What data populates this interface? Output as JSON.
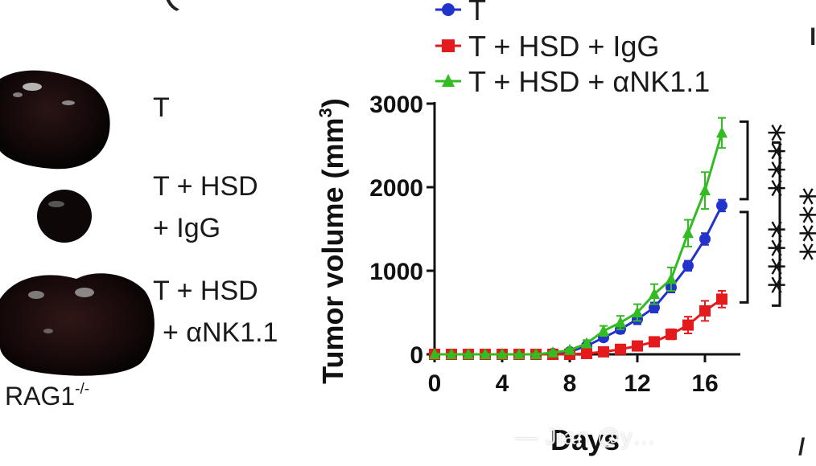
{
  "panel_photos": {
    "groups": [
      {
        "line1": "T",
        "line2": ""
      },
      {
        "line1": "T + HSD",
        "line2": "+ IgG"
      },
      {
        "line1": "T + HSD",
        "line2": "+ αNK1.1"
      }
    ],
    "strain": "RAG1",
    "strain_sup": "-/-"
  },
  "chart_data": {
    "type": "line",
    "xlabel": "Days",
    "ylabel": "Tumor volume (mm",
    "ylabel_sup": "3",
    "ylabel_close": ")",
    "xlim": [
      0,
      18
    ],
    "ylim": [
      0,
      3000
    ],
    "xticks": [
      0,
      4,
      8,
      12,
      16
    ],
    "yticks": [
      0,
      1000,
      2000,
      3000
    ],
    "legend_position": "top",
    "x": [
      0,
      1,
      2,
      3,
      4,
      5,
      6,
      7,
      8,
      9,
      10,
      11,
      12,
      13,
      14,
      15,
      16,
      17
    ],
    "series": [
      {
        "name": "T",
        "color": "#2233cc",
        "marker": "circle",
        "values": [
          0,
          0,
          0,
          0,
          0,
          0,
          0,
          10,
          30,
          100,
          200,
          300,
          420,
          560,
          800,
          1060,
          1380,
          1780
        ],
        "errors": [
          0,
          0,
          0,
          0,
          0,
          0,
          0,
          10,
          15,
          30,
          40,
          50,
          60,
          60,
          60,
          60,
          70,
          70
        ]
      },
      {
        "name": "T + HSD + IgG",
        "color": "#e41a1c",
        "marker": "square",
        "values": [
          0,
          0,
          0,
          0,
          0,
          0,
          0,
          0,
          0,
          10,
          30,
          60,
          100,
          150,
          240,
          350,
          520,
          660
        ],
        "errors": [
          0,
          0,
          0,
          0,
          0,
          0,
          0,
          0,
          0,
          10,
          15,
          20,
          30,
          40,
          60,
          100,
          120,
          100
        ]
      },
      {
        "name": "T + HSD + αNK1.1",
        "color": "#33bb22",
        "marker": "triangle",
        "values": [
          0,
          0,
          0,
          0,
          0,
          0,
          0,
          20,
          50,
          130,
          280,
          380,
          500,
          720,
          900,
          1450,
          1960,
          2650
        ],
        "errors": [
          0,
          0,
          0,
          0,
          0,
          0,
          0,
          15,
          20,
          40,
          60,
          80,
          100,
          120,
          140,
          160,
          220,
          180
        ]
      }
    ],
    "significance": [
      {
        "label": "****",
        "between": [
          "T + HSD + αNK1.1",
          "T"
        ]
      },
      {
        "label": "****",
        "between": [
          "T",
          "T + HSD + IgG"
        ]
      },
      {
        "label": "****",
        "between": [
          "T + HSD + αNK1.1",
          "T + HSD + IgG"
        ]
      }
    ]
  },
  "watermark": "— Jian @y…",
  "edge_letters": {
    "top_left": "(",
    "right": "l",
    "bottom_right": "/"
  }
}
